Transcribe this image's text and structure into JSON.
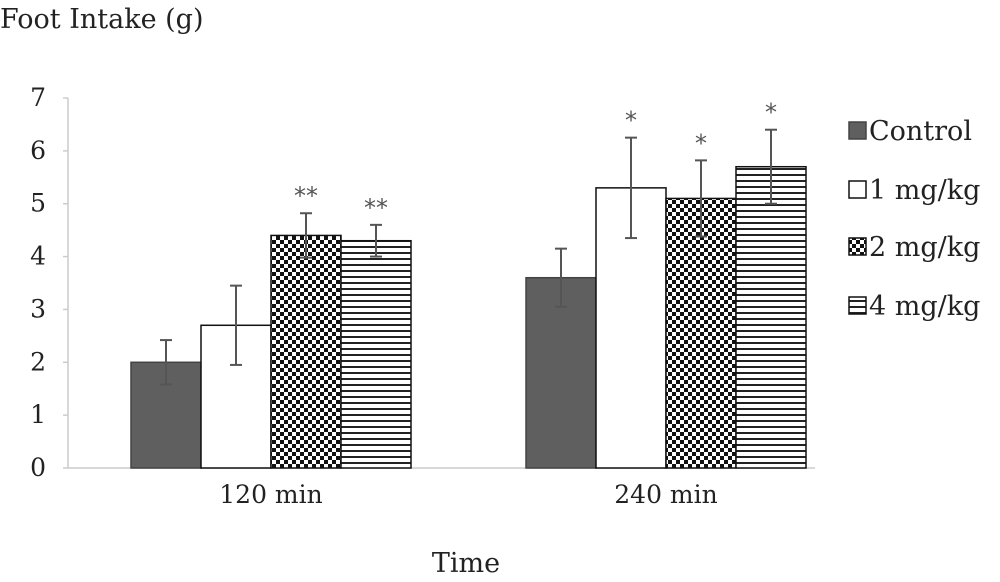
{
  "chart_data": {
    "type": "bar",
    "title": "",
    "ylabel": "Foot Intake (g)",
    "xlabel": "Time",
    "ylim": [
      0,
      7
    ],
    "yticks": [
      0,
      1,
      2,
      3,
      4,
      5,
      6,
      7
    ],
    "categories": [
      "120 min",
      "240 min"
    ],
    "legend_position": "right",
    "grid": false,
    "series": [
      {
        "name": "Control",
        "values": [
          2.0,
          3.6
        ],
        "errors": [
          0.42,
          0.55
        ],
        "annotations": [
          "",
          ""
        ],
        "fill": "solid",
        "color": "#5f5f5f"
      },
      {
        "name": "1 mg/kg",
        "values": [
          2.7,
          5.3
        ],
        "errors": [
          0.75,
          0.95
        ],
        "annotations": [
          "",
          "*"
        ],
        "fill": "white",
        "color": "#ffffff"
      },
      {
        "name": "2 mg/kg",
        "values": [
          4.4,
          5.1
        ],
        "errors": [
          0.42,
          0.72
        ],
        "annotations": [
          "**",
          "*"
        ],
        "fill": "checker",
        "color": "#000000"
      },
      {
        "name": "4 mg/kg",
        "values": [
          4.3,
          5.7
        ],
        "errors": [
          0.3,
          0.7
        ],
        "annotations": [
          "**",
          "*"
        ],
        "fill": "hstripes",
        "color": "#000000"
      }
    ]
  }
}
